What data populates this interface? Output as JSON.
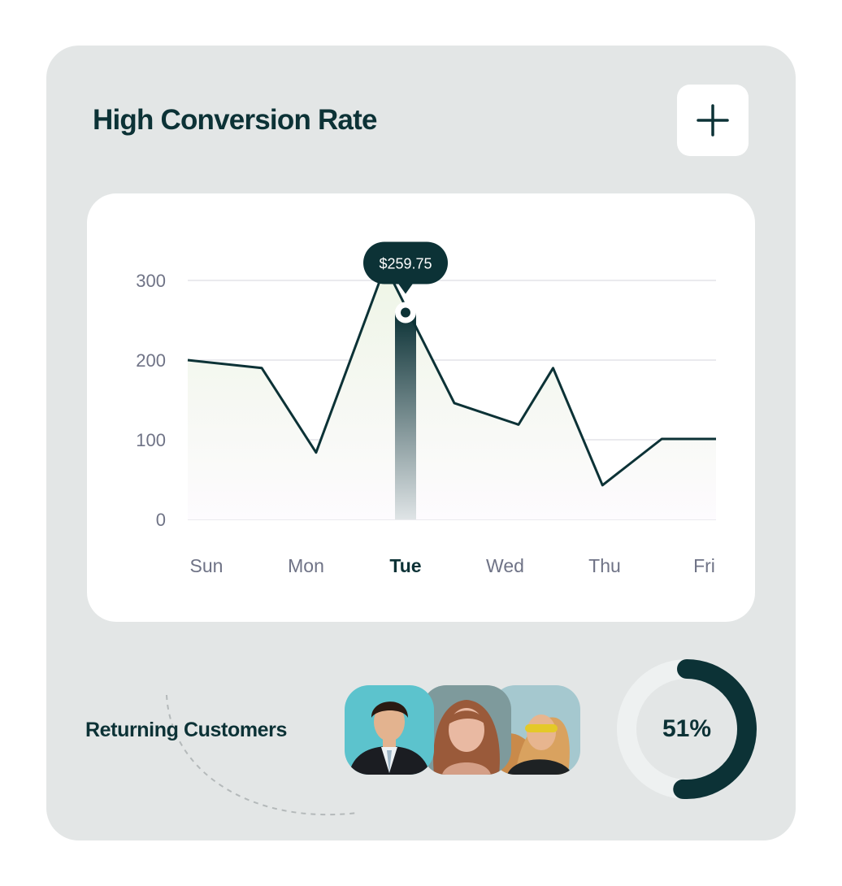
{
  "title": "High Conversion Rate",
  "icons": {
    "add": "plus-icon"
  },
  "colors": {
    "accent": "#0c3236",
    "card_bg": "#e3e6e6",
    "panel_bg": "#ffffff",
    "area_fill": "#eef5e6"
  },
  "chart_data": {
    "type": "line",
    "categories": [
      "Sun",
      "Mon",
      "Tue",
      "Wed",
      "Thu",
      "Fri"
    ],
    "x": [
      0,
      0.75,
      1.3,
      2,
      2.7,
      3.35,
      3.7,
      4.2,
      4.8,
      5.05,
      5.35
    ],
    "values": [
      200,
      190,
      84,
      318,
      146,
      119,
      190,
      43,
      101,
      101,
      101
    ],
    "ylim": [
      0,
      300
    ],
    "yticks": [
      0,
      100,
      200,
      300
    ],
    "highlight": {
      "category": "Tue",
      "value": 259.75,
      "label": "$259.75"
    },
    "grid": true,
    "title": "",
    "xlabel": "",
    "ylabel": ""
  },
  "returning_customers": {
    "label": "Returning Customers",
    "percent": 51,
    "percent_label": "51%"
  }
}
